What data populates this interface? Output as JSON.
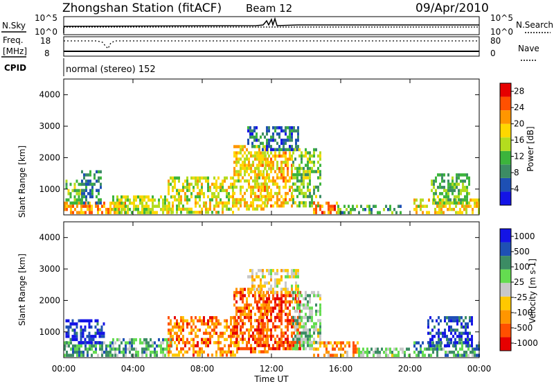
{
  "header": {
    "station": "Zhongshan Station (fitACF)",
    "beam": "Beam 12",
    "date": "09/Apr/2010"
  },
  "top_panels": {
    "nsky": {
      "label": "N.Sky",
      "ticks": [
        "10^5",
        "10^0"
      ],
      "right_label": "N.Search",
      "right_ticks": [
        "10^5",
        "10^0"
      ]
    },
    "freq": {
      "label_line1": "Freq.",
      "label_line2": "[MHz]",
      "ticks": [
        "18",
        "8"
      ],
      "right_label": "Nave",
      "right_ticks": [
        "80",
        "0"
      ]
    },
    "cpid": {
      "label": "CPID",
      "text": "normal (stereo) 152"
    }
  },
  "colors": {
    "power_scale": [
      "#1414e6",
      "#1e50b4",
      "#3c8c64",
      "#3cb43c",
      "#b4dc1e",
      "#ffd700",
      "#ff9600",
      "#ff5000",
      "#e60000"
    ],
    "velocity_scale": [
      "#e60000",
      "#ff5000",
      "#ff9600",
      "#ffc800",
      "#c8c8c8",
      "#64dc50",
      "#3c8c64",
      "#1e50b4",
      "#1414e6"
    ]
  },
  "chart_data": [
    {
      "type": "heatmap",
      "title": "Power",
      "xlabel": "",
      "ylabel": "Slant Range [km]",
      "x_ticks": [
        "00:00",
        "04:00",
        "08:00",
        "12:00",
        "16:00",
        "20:00",
        "00:00"
      ],
      "xlim_hours": [
        0,
        24
      ],
      "y_ticks": [
        "1000",
        "2000",
        "3000",
        "4000"
      ],
      "ylim_km": [
        180,
        4500
      ],
      "colorbar": {
        "label": "Power [dB]",
        "ticks": [
          "4",
          "8",
          "12",
          "16",
          "20",
          "24",
          "28"
        ],
        "range": [
          0,
          30
        ]
      },
      "blobs": [
        {
          "t0": 0.0,
          "t1": 3.6,
          "r0": 250,
          "r1": 600,
          "level": 0.72
        },
        {
          "t0": 0.1,
          "t1": 1.0,
          "r0": 600,
          "r1": 1300,
          "level": 0.45
        },
        {
          "t0": 1.0,
          "t1": 2.2,
          "r0": 600,
          "r1": 1600,
          "level": 0.28
        },
        {
          "t0": 2.8,
          "t1": 6.2,
          "r0": 250,
          "r1": 800,
          "level": 0.5
        },
        {
          "t0": 6.0,
          "t1": 9.8,
          "r0": 300,
          "r1": 1400,
          "level": 0.55
        },
        {
          "t0": 9.8,
          "t1": 11.8,
          "r0": 400,
          "r1": 2400,
          "level": 0.6
        },
        {
          "t0": 11.2,
          "t1": 13.2,
          "r0": 500,
          "r1": 2200,
          "level": 0.65
        },
        {
          "t0": 10.6,
          "t1": 13.6,
          "r0": 2300,
          "r1": 3000,
          "level": 0.22
        },
        {
          "t0": 13.2,
          "t1": 14.8,
          "r0": 500,
          "r1": 2300,
          "level": 0.45
        },
        {
          "t0": 14.4,
          "t1": 15.8,
          "r0": 250,
          "r1": 600,
          "level": 0.78
        },
        {
          "t0": 15.8,
          "t1": 19.5,
          "r0": 250,
          "r1": 500,
          "level": 0.35
        },
        {
          "t0": 20.2,
          "t1": 24.0,
          "r0": 300,
          "r1": 700,
          "level": 0.6
        },
        {
          "t0": 21.2,
          "t1": 23.4,
          "r0": 600,
          "r1": 1500,
          "level": 0.4
        }
      ]
    },
    {
      "type": "heatmap",
      "title": "Velocity",
      "xlabel": "Time UT",
      "ylabel": "Slant Range [km]",
      "x_ticks": [
        "00:00",
        "04:00",
        "08:00",
        "12:00",
        "16:00",
        "20:00",
        "00:00"
      ],
      "xlim_hours": [
        0,
        24
      ],
      "y_ticks": [
        "1000",
        "2000",
        "3000",
        "4000"
      ],
      "ylim_km": [
        180,
        4500
      ],
      "colorbar": {
        "label": "Velocity [m s-1]",
        "ticks": [
          "1000",
          "500",
          "100",
          "25",
          "-25",
          "-100",
          "-500",
          "-1000"
        ],
        "range": [
          -1000,
          1000
        ]
      },
      "blobs": [
        {
          "t0": 0.0,
          "t1": 2.8,
          "r0": 250,
          "r1": 700,
          "level": 0.7
        },
        {
          "t0": 0.1,
          "t1": 2.3,
          "r0": 700,
          "r1": 1400,
          "level": 0.9
        },
        {
          "t0": 2.8,
          "t1": 6.2,
          "r0": 250,
          "r1": 800,
          "level": 0.65
        },
        {
          "t0": 6.0,
          "t1": 10.0,
          "r0": 300,
          "r1": 1500,
          "level": 0.25
        },
        {
          "t0": 9.8,
          "t1": 11.8,
          "r0": 400,
          "r1": 2400,
          "level": 0.2
        },
        {
          "t0": 11.2,
          "t1": 13.6,
          "r0": 500,
          "r1": 2300,
          "level": 0.15
        },
        {
          "t0": 10.6,
          "t1": 13.6,
          "r0": 2300,
          "r1": 3000,
          "level": 0.45
        },
        {
          "t0": 13.2,
          "t1": 14.8,
          "r0": 500,
          "r1": 2300,
          "level": 0.6
        },
        {
          "t0": 14.4,
          "t1": 17.0,
          "r0": 250,
          "r1": 700,
          "level": 0.3
        },
        {
          "t0": 17.0,
          "t1": 20.0,
          "r0": 250,
          "r1": 500,
          "level": 0.6
        },
        {
          "t0": 20.2,
          "t1": 24.0,
          "r0": 250,
          "r1": 700,
          "level": 0.7
        },
        {
          "t0": 21.0,
          "t1": 23.6,
          "r0": 600,
          "r1": 1500,
          "level": 0.88
        }
      ]
    }
  ]
}
